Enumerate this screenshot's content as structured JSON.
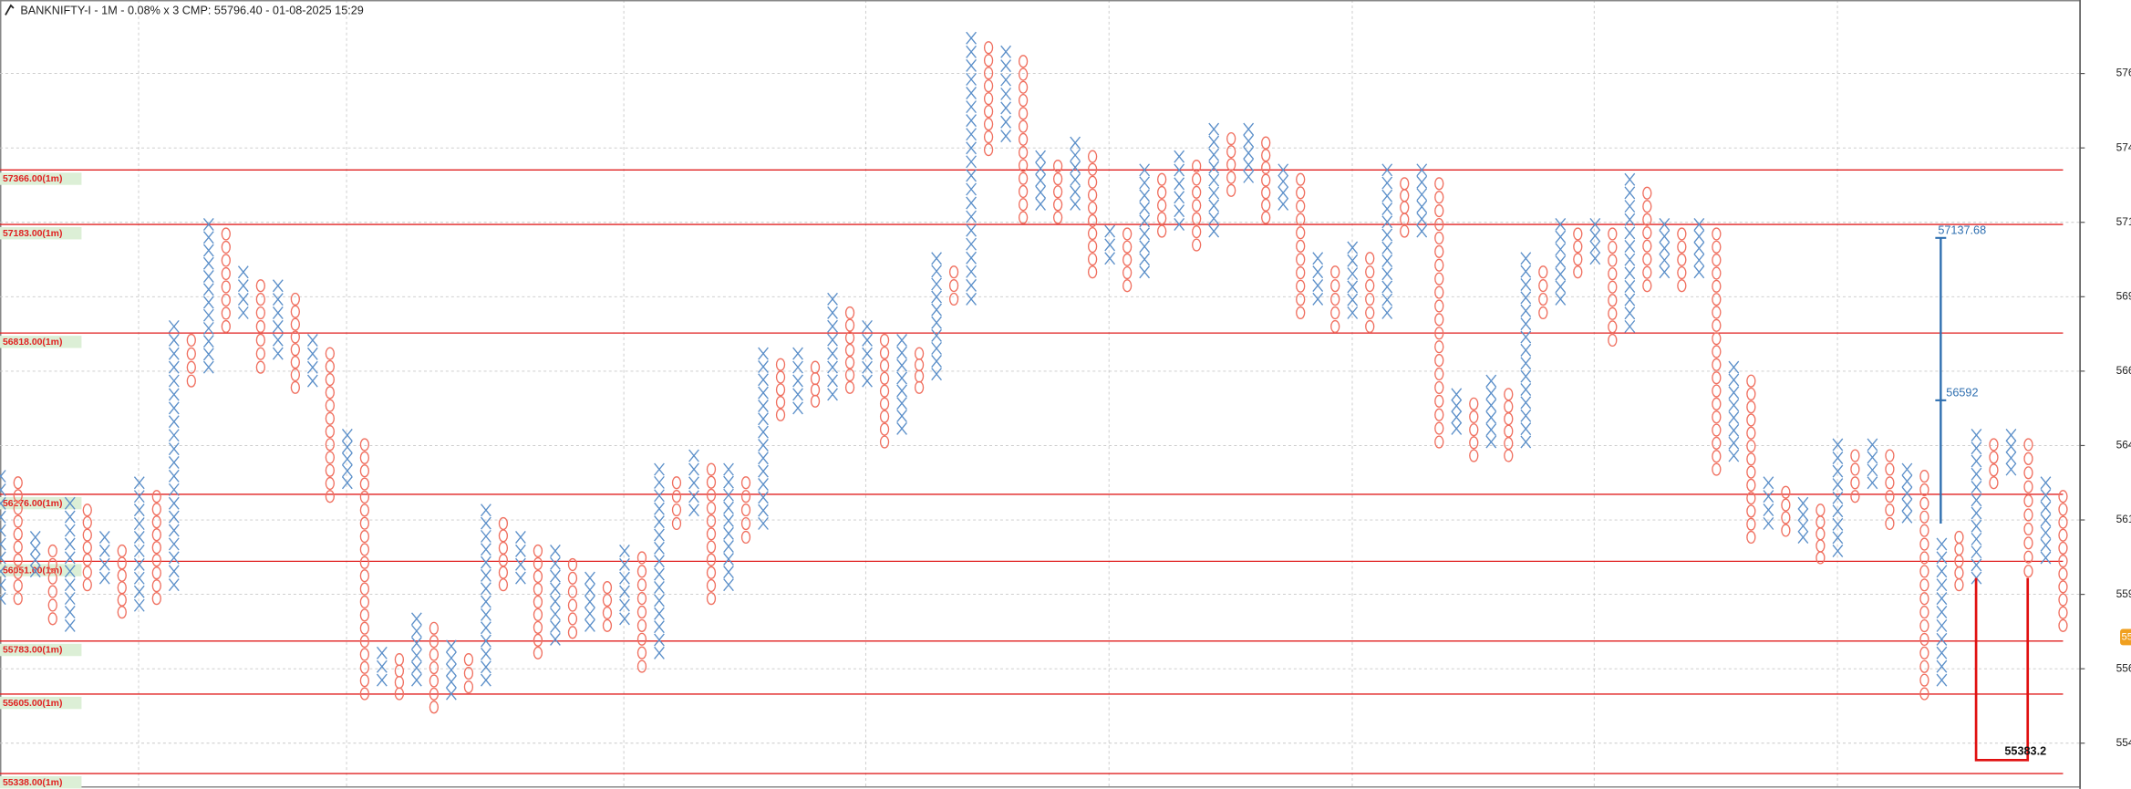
{
  "chart_data": {
    "type": "pnf",
    "title": "BANKNIFTY-I - 1M - 0.08% x 3 CMP: 55796.40 - 01-08-2025 15:29",
    "box_size": 45,
    "colors": {
      "X": "#5b8fc9",
      "O": "#f07060",
      "level": "#e02020"
    },
    "ylim": [
      55286,
      57937
    ],
    "yticks": [
      {
        "value": 57690,
        "label": "576"
      },
      {
        "value": 57440,
        "label": "574"
      },
      {
        "value": 57190,
        "label": "571"
      },
      {
        "value": 56940,
        "label": "569"
      },
      {
        "value": 56690,
        "label": "566"
      },
      {
        "value": 56440,
        "label": "564"
      },
      {
        "value": 56190,
        "label": "561"
      },
      {
        "value": 55940,
        "label": "559"
      },
      {
        "value": 55690,
        "label": "556"
      },
      {
        "value": 55440,
        "label": "554"
      }
    ],
    "grid": true,
    "levels": [
      {
        "value": 57366,
        "label": "57366.00(1m)"
      },
      {
        "value": 57183,
        "label": "57183.00(1m)"
      },
      {
        "value": 56818,
        "label": "56818.00(1m)"
      },
      {
        "value": 56276,
        "label": "56276.00(1m)"
      },
      {
        "value": 56051,
        "label": "56051.00(1m)"
      },
      {
        "value": 55783,
        "label": "55783.00(1m)"
      },
      {
        "value": 55605,
        "label": "55605.00(1m)"
      },
      {
        "value": 55338,
        "label": "55338.00(1m)"
      }
    ],
    "columns": [
      {
        "kind": "X",
        "high": 56337,
        "low": 55926
      },
      {
        "kind": "O",
        "high": 56315,
        "low": 55926
      },
      {
        "kind": "X",
        "high": 56132,
        "low": 56018
      },
      {
        "kind": "O",
        "high": 56086,
        "low": 55858
      },
      {
        "kind": "X",
        "high": 56246,
        "low": 55835
      },
      {
        "kind": "O",
        "high": 56223,
        "low": 55972
      },
      {
        "kind": "X",
        "high": 56132,
        "low": 55995
      },
      {
        "kind": "O",
        "high": 56086,
        "low": 55880
      },
      {
        "kind": "X",
        "high": 56315,
        "low": 55903
      },
      {
        "kind": "O",
        "high": 56269,
        "low": 55926
      },
      {
        "kind": "X",
        "high": 56840,
        "low": 55972
      },
      {
        "kind": "O",
        "high": 56794,
        "low": 56657
      },
      {
        "kind": "X",
        "high": 57183,
        "low": 56703
      },
      {
        "kind": "O",
        "high": 57151,
        "low": 56840
      },
      {
        "kind": "X",
        "high": 57023,
        "low": 56886
      },
      {
        "kind": "O",
        "high": 56977,
        "low": 56703
      },
      {
        "kind": "X",
        "high": 56977,
        "low": 56749
      },
      {
        "kind": "O",
        "high": 56932,
        "low": 56635
      },
      {
        "kind": "X",
        "high": 56794,
        "low": 56657
      },
      {
        "kind": "O",
        "high": 56749,
        "low": 56269
      },
      {
        "kind": "X",
        "high": 56475,
        "low": 56315
      },
      {
        "kind": "O",
        "high": 56443,
        "low": 55606
      },
      {
        "kind": "X",
        "high": 55743,
        "low": 55652
      },
      {
        "kind": "O",
        "high": 55721,
        "low": 55606
      },
      {
        "kind": "X",
        "high": 55858,
        "low": 55652
      },
      {
        "kind": "O",
        "high": 55826,
        "low": 55561
      },
      {
        "kind": "X",
        "high": 55766,
        "low": 55606
      },
      {
        "kind": "O",
        "high": 55721,
        "low": 55629
      },
      {
        "kind": "X",
        "high": 56223,
        "low": 55652
      },
      {
        "kind": "O",
        "high": 56178,
        "low": 55972
      },
      {
        "kind": "X",
        "high": 56132,
        "low": 55995
      },
      {
        "kind": "O",
        "high": 56086,
        "low": 55743
      },
      {
        "kind": "X",
        "high": 56086,
        "low": 55789
      },
      {
        "kind": "O",
        "high": 56040,
        "low": 55812
      },
      {
        "kind": "X",
        "high": 55995,
        "low": 55835
      },
      {
        "kind": "O",
        "high": 55963,
        "low": 55835
      },
      {
        "kind": "X",
        "high": 56086,
        "low": 55858
      },
      {
        "kind": "O",
        "high": 56063,
        "low": 55698
      },
      {
        "kind": "X",
        "high": 56360,
        "low": 55743
      },
      {
        "kind": "O",
        "high": 56315,
        "low": 56178
      },
      {
        "kind": "X",
        "high": 56406,
        "low": 56223
      },
      {
        "kind": "O",
        "high": 56360,
        "low": 55926
      },
      {
        "kind": "X",
        "high": 56360,
        "low": 55972
      },
      {
        "kind": "O",
        "high": 56315,
        "low": 56132
      },
      {
        "kind": "X",
        "high": 56749,
        "low": 56178
      },
      {
        "kind": "O",
        "high": 56712,
        "low": 56543
      },
      {
        "kind": "X",
        "high": 56749,
        "low": 56566
      },
      {
        "kind": "O",
        "high": 56703,
        "low": 56589
      },
      {
        "kind": "X",
        "high": 56932,
        "low": 56612
      },
      {
        "kind": "O",
        "high": 56886,
        "low": 56635
      },
      {
        "kind": "X",
        "high": 56840,
        "low": 56657
      },
      {
        "kind": "O",
        "high": 56794,
        "low": 56452
      },
      {
        "kind": "X",
        "high": 56794,
        "low": 56497
      },
      {
        "kind": "O",
        "high": 56749,
        "low": 56635
      },
      {
        "kind": "X",
        "high": 57069,
        "low": 56680
      },
      {
        "kind": "O",
        "high": 57023,
        "low": 56932
      },
      {
        "kind": "X",
        "high": 57809,
        "low": 56932
      },
      {
        "kind": "O",
        "high": 57777,
        "low": 57434
      },
      {
        "kind": "X",
        "high": 57763,
        "low": 57480
      },
      {
        "kind": "O",
        "high": 57731,
        "low": 57206
      },
      {
        "kind": "X",
        "high": 57411,
        "low": 57251
      },
      {
        "kind": "O",
        "high": 57379,
        "low": 57206
      },
      {
        "kind": "X",
        "high": 57457,
        "low": 57251
      },
      {
        "kind": "O",
        "high": 57411,
        "low": 57023
      },
      {
        "kind": "X",
        "high": 57160,
        "low": 57069
      },
      {
        "kind": "O",
        "high": 57151,
        "low": 56977
      },
      {
        "kind": "X",
        "high": 57366,
        "low": 57023
      },
      {
        "kind": "O",
        "high": 57334,
        "low": 57160
      },
      {
        "kind": "X",
        "high": 57411,
        "low": 57183
      },
      {
        "kind": "O",
        "high": 57379,
        "low": 57114
      },
      {
        "kind": "X",
        "high": 57503,
        "low": 57160
      },
      {
        "kind": "O",
        "high": 57471,
        "low": 57297
      },
      {
        "kind": "X",
        "high": 57503,
        "low": 57343
      },
      {
        "kind": "O",
        "high": 57457,
        "low": 57206
      },
      {
        "kind": "X",
        "high": 57366,
        "low": 57251
      },
      {
        "kind": "O",
        "high": 57334,
        "low": 56886
      },
      {
        "kind": "X",
        "high": 57069,
        "low": 56932
      },
      {
        "kind": "O",
        "high": 57023,
        "low": 56840
      },
      {
        "kind": "X",
        "high": 57105,
        "low": 56886
      },
      {
        "kind": "O",
        "high": 57069,
        "low": 56840
      },
      {
        "kind": "X",
        "high": 57366,
        "low": 56886
      },
      {
        "kind": "O",
        "high": 57320,
        "low": 57160
      },
      {
        "kind": "X",
        "high": 57366,
        "low": 57160
      },
      {
        "kind": "O",
        "high": 57320,
        "low": 56452
      },
      {
        "kind": "X",
        "high": 56612,
        "low": 56497
      },
      {
        "kind": "O",
        "high": 56580,
        "low": 56406
      },
      {
        "kind": "X",
        "high": 56657,
        "low": 56452
      },
      {
        "kind": "O",
        "high": 56612,
        "low": 56406
      },
      {
        "kind": "X",
        "high": 57069,
        "low": 56452
      },
      {
        "kind": "O",
        "high": 57023,
        "low": 56886
      },
      {
        "kind": "X",
        "high": 57183,
        "low": 56932
      },
      {
        "kind": "O",
        "high": 57151,
        "low": 57023
      },
      {
        "kind": "X",
        "high": 57183,
        "low": 57069
      },
      {
        "kind": "O",
        "high": 57151,
        "low": 56794
      },
      {
        "kind": "X",
        "high": 57334,
        "low": 56840
      },
      {
        "kind": "O",
        "high": 57288,
        "low": 56977
      },
      {
        "kind": "X",
        "high": 57183,
        "low": 57023
      },
      {
        "kind": "O",
        "high": 57151,
        "low": 56977
      },
      {
        "kind": "X",
        "high": 57183,
        "low": 57023
      },
      {
        "kind": "O",
        "high": 57151,
        "low": 56360
      },
      {
        "kind": "X",
        "high": 56703,
        "low": 56406
      },
      {
        "kind": "O",
        "high": 56657,
        "low": 56132
      },
      {
        "kind": "X",
        "high": 56315,
        "low": 56178
      },
      {
        "kind": "O",
        "high": 56283,
        "low": 56155
      },
      {
        "kind": "X",
        "high": 56246,
        "low": 56132
      },
      {
        "kind": "O",
        "high": 56223,
        "low": 56063
      },
      {
        "kind": "X",
        "high": 56443,
        "low": 56086
      },
      {
        "kind": "O",
        "high": 56406,
        "low": 56269
      },
      {
        "kind": "X",
        "high": 56443,
        "low": 56315
      },
      {
        "kind": "O",
        "high": 56406,
        "low": 56178
      },
      {
        "kind": "X",
        "high": 56360,
        "low": 56200
      },
      {
        "kind": "O",
        "high": 56337,
        "low": 55606
      },
      {
        "kind": "X",
        "high": 56109,
        "low": 55652
      },
      {
        "kind": "O",
        "high": 56132,
        "low": 55972
      },
      {
        "kind": "X",
        "high": 56475,
        "low": 55995
      },
      {
        "kind": "O",
        "high": 56443,
        "low": 56315
      },
      {
        "kind": "X",
        "high": 56475,
        "low": 56360
      },
      {
        "kind": "O",
        "high": 56443,
        "low": 56018
      },
      {
        "kind": "X",
        "high": 56315,
        "low": 56063
      },
      {
        "kind": "O",
        "high": 56269,
        "low": 55835
      }
    ],
    "blue_measure": {
      "color": "#2f6fb0",
      "top": {
        "value": 57137.68,
        "label": "57137.68"
      },
      "mid": {
        "value": 56592,
        "label": "56592"
      },
      "low": 56178
    },
    "red_measure": {
      "color": "#e01010",
      "from": 55995,
      "to": {
        "value": 55383.2,
        "label": "55383.2"
      }
    },
    "cmp_tag": {
      "value": 55796.4,
      "label": "55",
      "color": "#f0a020"
    }
  }
}
